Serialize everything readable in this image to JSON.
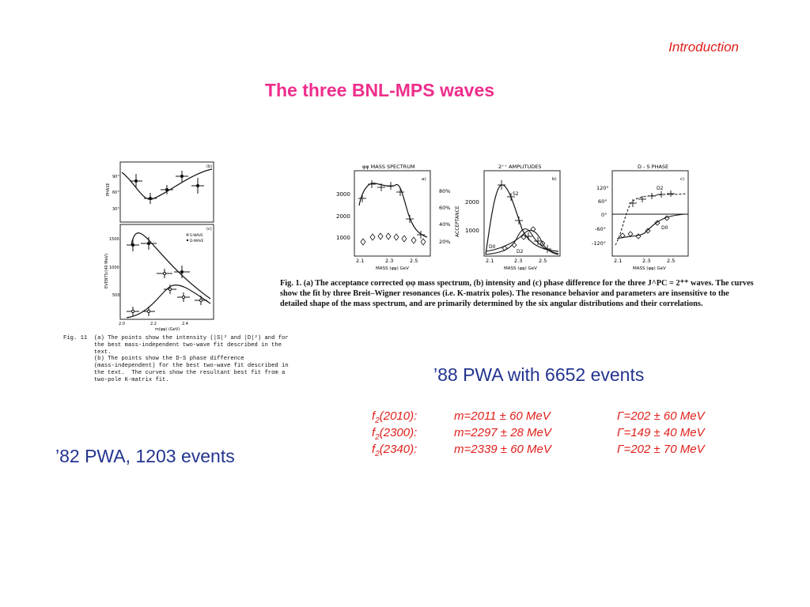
{
  "section_label": "Introduction",
  "title": "The three BNL-MPS waves",
  "left_caption": "’82 PWA, 1203 events",
  "right_caption": "’88 PWA with 6652 events",
  "bullet_glyph": "",
  "resonances": [
    {
      "name_prefix": "f",
      "name_sub": "2",
      "name_suffix": "(2010):",
      "mass": "m=2011 ± 60 MeV",
      "width": "Γ=202 ± 60 MeV"
    },
    {
      "name_prefix": "f",
      "name_sub": "2",
      "name_suffix": "(2300):",
      "mass": "m=2297 ± 28 MeV",
      "width": "Γ=149 ± 40 MeV"
    },
    {
      "name_prefix": "f",
      "name_sub": "2",
      "name_suffix": "(2340):",
      "mass": "m=2339 ± 60 MeV",
      "width": "Γ=202 ± 70 MeV"
    }
  ],
  "fig11": {
    "panel_b_label": "(b)",
    "panel_c_label": "(c)",
    "phase_axis_label": "PHASE",
    "events_axis_label": "EVENTS/(40 MeV)",
    "x_axis_label": "m(φφ) (GeV)",
    "phase_ticks": [
      "90°",
      "60°",
      "30°"
    ],
    "events_ticks": [
      "1500",
      "1000",
      "500"
    ],
    "x_ticks": [
      "2.0",
      "2.2",
      "2.4"
    ],
    "legend": [
      "S-WAVE",
      "D-WAVE"
    ],
    "caption": "Fig. 11  (a) The points show the intensity (|S|² and |D|²) and for\n         the best mass-independent two-wave fit described in the\n         text.\n         (b) The points show the D-S phase difference\n         (mass-independent) for the best two-wave fit described in\n         the text.  The curves show the resultant best fit from a\n         two-pole K-matrix fit."
  },
  "fig1": {
    "panel_a_title": "φφ MASS SPECTRUM",
    "panel_b_title": "2⁺⁺ AMPLITUDES",
    "panel_c_title": "D - S PHASE",
    "panel_a_tag": "a)",
    "panel_b_tag": "b)",
    "panel_c_tag": "c)",
    "a_y_ticks": [
      "3000",
      "2000",
      "1000"
    ],
    "a_y2_ticks": [
      "80%",
      "60%",
      "40%",
      "20%"
    ],
    "a_y2_label": "ACCEPTANCE",
    "b_y_ticks": [
      "2000",
      "1000"
    ],
    "c_y_ticks": [
      "120°",
      "60°",
      "0°",
      "-60°",
      "-120°"
    ],
    "x_ticks": [
      "2.1",
      "2.3",
      "2.5"
    ],
    "x_axis_label": "MASS (φφ) GeV",
    "b_labels": [
      "S2",
      "D0",
      "D2"
    ],
    "c_labels": [
      "D2",
      "D0"
    ],
    "caption": "Fig. 1. (a) The acceptance corrected φφ mass spectrum, (b) intensity and (c) phase difference for the three J^PC = 2⁺⁺ waves. The curves show the fit by three Breit–Wigner resonances (i.e. K-matrix poles). The resonance behavior and parameters are insensitive to the detailed shape of the mass spectrum, and are primarily determined by the six angular distributions and their correlations."
  }
}
